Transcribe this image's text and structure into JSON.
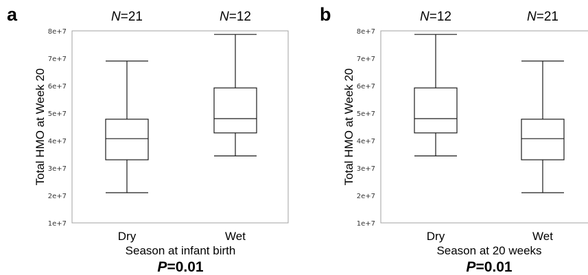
{
  "chart_data": [
    {
      "panel": "a",
      "type": "box",
      "categories": [
        "Dry",
        "Wet"
      ],
      "n_labels": [
        {
          "italic": "N",
          "rest": "=21"
        },
        {
          "italic": "N",
          "rest": "=12"
        }
      ],
      "boxes": [
        {
          "min": 21000000,
          "q1": 33000000,
          "median": 40700000,
          "q3": 47800000,
          "max": 69000000
        },
        {
          "min": 34400000,
          "q1": 42800000,
          "median": 48000000,
          "q3": 59200000,
          "max": 78700000
        }
      ],
      "ylabel": "Total HMO at Week 20",
      "xlabel": "Season at infant birth",
      "ylim": [
        10000000,
        80000000
      ],
      "yticks": [
        "1e+7",
        "2e+7",
        "3e+7",
        "4e+7",
        "5e+7",
        "6e+7",
        "7e+7",
        "8e+7"
      ],
      "pvalue": {
        "italic": "P",
        "rest": "=0.01"
      }
    },
    {
      "panel": "b",
      "type": "box",
      "categories": [
        "Dry",
        "Wet"
      ],
      "n_labels": [
        {
          "italic": "N",
          "rest": "=12"
        },
        {
          "italic": "N",
          "rest": "=21"
        }
      ],
      "boxes": [
        {
          "min": 34400000,
          "q1": 42800000,
          "median": 48000000,
          "q3": 59200000,
          "max": 78700000
        },
        {
          "min": 21000000,
          "q1": 33000000,
          "median": 40700000,
          "q3": 47800000,
          "max": 69000000
        }
      ],
      "ylabel": "Total HMO at Week 20",
      "xlabel": "Season at 20 weeks",
      "ylim": [
        10000000,
        80000000
      ],
      "yticks": [
        "1e+7",
        "2e+7",
        "3e+7",
        "4e+7",
        "5e+7",
        "6e+7",
        "7e+7",
        "8e+7"
      ],
      "pvalue": {
        "italic": "P",
        "rest": "=0.01"
      }
    }
  ]
}
